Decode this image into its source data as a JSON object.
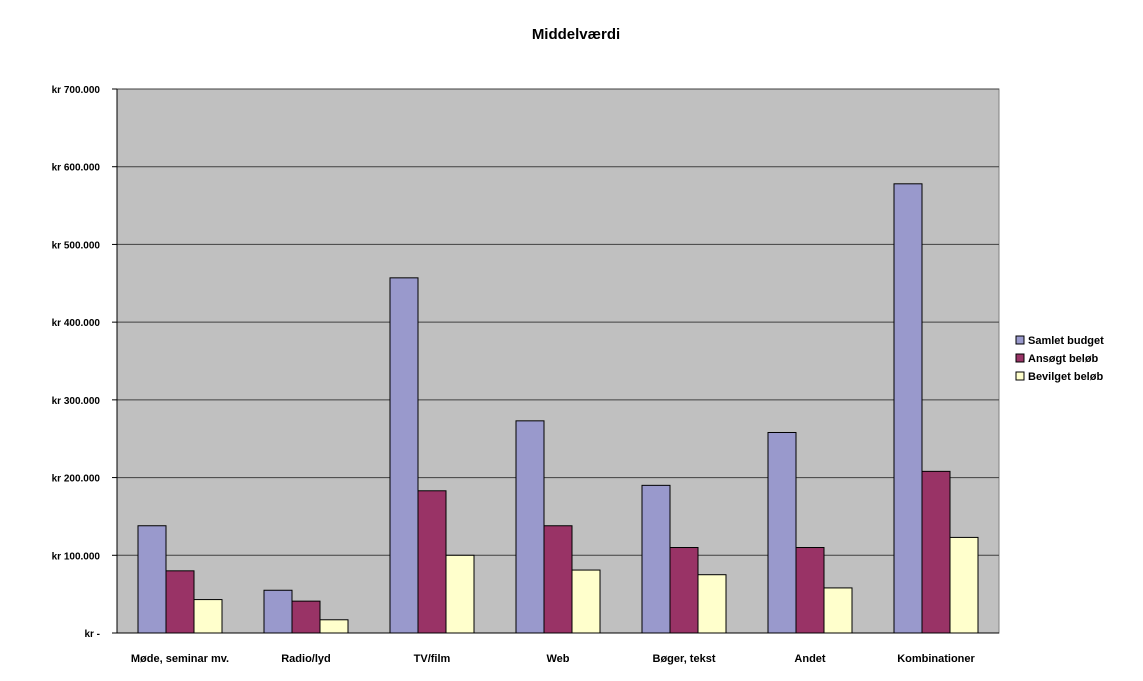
{
  "chart_data": {
    "type": "bar",
    "title": "Middelværdi",
    "xlabel": "",
    "ylabel": "",
    "categories": [
      "Møde, seminar mv.",
      "Radio/lyd",
      "TV/film",
      "Web",
      "Bøger, tekst",
      "Andet",
      "Kombinationer"
    ],
    "series": [
      {
        "name": "Samlet budget",
        "color": "#9999cc",
        "values": [
          138000,
          55000,
          457000,
          273000,
          190000,
          258000,
          578000
        ]
      },
      {
        "name": "Ansøgt beløb",
        "color": "#993366",
        "values": [
          80000,
          41000,
          183000,
          138000,
          110000,
          110000,
          208000
        ]
      },
      {
        "name": "Bevilget beløb",
        "color": "#ffffcc",
        "values": [
          43000,
          17000,
          100000,
          81000,
          75000,
          58000,
          123000
        ]
      }
    ],
    "yticks": [
      {
        "value": 0,
        "label": "kr -"
      },
      {
        "value": 100000,
        "label": "kr 100.000"
      },
      {
        "value": 200000,
        "label": "kr 200.000"
      },
      {
        "value": 300000,
        "label": "kr 300.000"
      },
      {
        "value": 400000,
        "label": "kr 400.000"
      },
      {
        "value": 500000,
        "label": "kr 500.000"
      },
      {
        "value": 600000,
        "label": "kr 600.000"
      },
      {
        "value": 700000,
        "label": "kr 700.000"
      }
    ],
    "ylim": [
      0,
      700000
    ],
    "grid": true,
    "legend_position": "right",
    "plot_background": "#c0c0c0"
  }
}
